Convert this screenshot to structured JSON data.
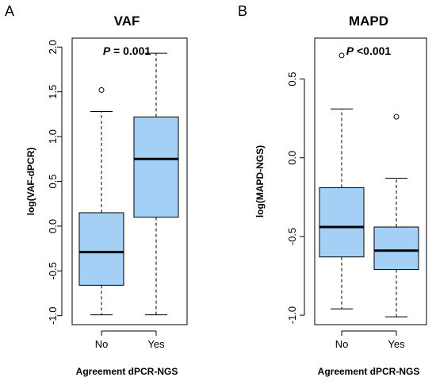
{
  "chart_data": [
    {
      "panel": "A",
      "type": "box",
      "title": "VAF",
      "annotation": {
        "p_label": "P",
        "p_text": " = 0.001"
      },
      "xlabel": "Agreement dPCR-NGS",
      "ylabel": "log(VAF-dPCR)",
      "ylim": [
        -1.1,
        2.1
      ],
      "yticks": [
        -1.0,
        -0.5,
        0.0,
        0.5,
        1.0,
        1.5,
        2.0
      ],
      "ytick_labels": [
        "-1.0",
        "-0.5",
        "0.0",
        "0.5",
        "1.0",
        "1.5",
        "2.0"
      ],
      "categories": [
        "No",
        "Yes"
      ],
      "box_color": "#a5d0f5",
      "boxes": [
        {
          "category": "No",
          "whisker_low": -0.99,
          "q1": -0.66,
          "median": -0.29,
          "q3": 0.15,
          "whisker_high": 1.28,
          "outliers": [
            1.52
          ]
        },
        {
          "category": "Yes",
          "whisker_low": -0.99,
          "q1": 0.1,
          "median": 0.75,
          "q3": 1.22,
          "whisker_high": 1.93,
          "outliers": []
        }
      ]
    },
    {
      "panel": "B",
      "type": "box",
      "title": "MAPD",
      "annotation": {
        "p_label": "P",
        "p_text": " <0.001"
      },
      "xlabel": "Agreement dPCR-NGS",
      "ylabel": "log(MAPD-NGS)",
      "ylim": [
        -1.06,
        0.76
      ],
      "yticks": [
        -1.0,
        -0.5,
        0.0,
        0.5
      ],
      "ytick_labels": [
        "-1.0",
        "-0.5",
        "0.0",
        "0.5"
      ],
      "categories": [
        "No",
        "Yes"
      ],
      "box_color": "#a5d0f5",
      "boxes": [
        {
          "category": "No",
          "whisker_low": -0.96,
          "q1": -0.63,
          "median": -0.44,
          "q3": -0.19,
          "whisker_high": 0.31,
          "outliers": [
            0.65
          ]
        },
        {
          "category": "Yes",
          "whisker_low": -1.01,
          "q1": -0.71,
          "median": -0.59,
          "q3": -0.44,
          "whisker_high": -0.13,
          "outliers": [
            0.26
          ]
        }
      ]
    }
  ]
}
